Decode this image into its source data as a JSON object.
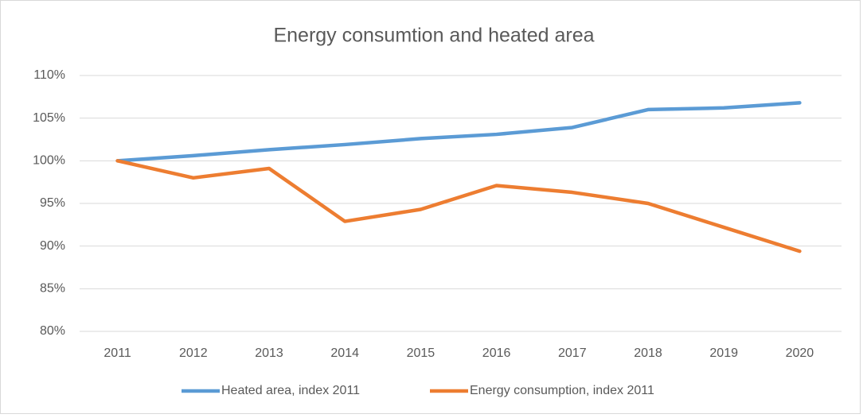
{
  "chart_data": {
    "type": "line",
    "title": "Energy consumtion and heated area",
    "categories": [
      "2011",
      "2012",
      "2013",
      "2014",
      "2015",
      "2016",
      "2017",
      "2018",
      "2019",
      "2020"
    ],
    "series": [
      {
        "name": "Heated area, index 2011",
        "color": "#5b9bd5",
        "values": [
          100,
          100.6,
          101.3,
          101.9,
          102.6,
          103.1,
          103.9,
          106.0,
          106.2,
          106.8
        ]
      },
      {
        "name": "Energy consumption, index 2011",
        "color": "#ed7d31",
        "values": [
          100,
          98.0,
          99.1,
          92.9,
          94.3,
          97.1,
          96.3,
          95.0,
          92.2,
          89.4
        ]
      }
    ],
    "ylim": [
      80,
      110
    ],
    "yticks": [
      {
        "value": 80,
        "label": "80%"
      },
      {
        "value": 85,
        "label": "85%"
      },
      {
        "value": 90,
        "label": "90%"
      },
      {
        "value": 95,
        "label": "95%"
      },
      {
        "value": 100,
        "label": "100%"
      },
      {
        "value": 105,
        "label": "105%"
      },
      {
        "value": 110,
        "label": "110%"
      }
    ],
    "grid": true,
    "legend": "bottom"
  }
}
